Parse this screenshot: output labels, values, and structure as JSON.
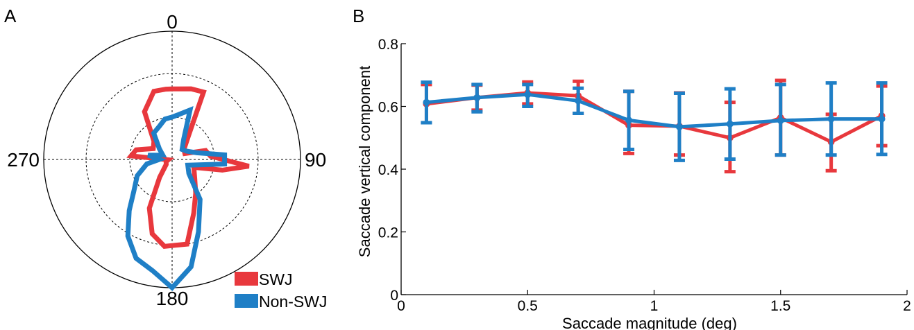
{
  "colors": {
    "swj": "#e8383d",
    "non_swj": "#1f7fc6",
    "axis": "#000000"
  },
  "chart_data": [
    {
      "panel_label": "A",
      "type": "polar",
      "angle_unit": "deg",
      "direction": "clockwise",
      "zero_location": "top",
      "angle_labels": [
        "0",
        "90",
        "180",
        "270"
      ],
      "r_max": 1.0,
      "rings": [
        0.33,
        0.67
      ],
      "legend_position": "bottom-right",
      "series": [
        {
          "name": "SWJ",
          "color_key": "swj",
          "points": [
            [
              0,
              0.55
            ],
            [
              15,
              0.57
            ],
            [
              25,
              0.58
            ],
            [
              35,
              0.22
            ],
            [
              50,
              0.12
            ],
            [
              65,
              0.11
            ],
            [
              75,
              0.27
            ],
            [
              85,
              0.3
            ],
            [
              95,
              0.6
            ],
            [
              102,
              0.4
            ],
            [
              110,
              0.18
            ],
            [
              130,
              0.23
            ],
            [
              145,
              0.32
            ],
            [
              158,
              0.45
            ],
            [
              170,
              0.67
            ],
            [
              185,
              0.68
            ],
            [
              195,
              0.6
            ],
            [
              205,
              0.42
            ],
            [
              215,
              0.17
            ],
            [
              230,
              0.06
            ],
            [
              250,
              0.05
            ],
            [
              265,
              0.03
            ],
            [
              275,
              0.32
            ],
            [
              285,
              0.29
            ],
            [
              300,
              0.17
            ],
            [
              315,
              0.2
            ],
            [
              330,
              0.43
            ],
            [
              345,
              0.55
            ],
            [
              355,
              0.55
            ]
          ]
        },
        {
          "name": "Non-SWJ",
          "color_key": "non_swj",
          "points": [
            [
              0,
              0.33
            ],
            [
              10,
              0.36
            ],
            [
              20,
              0.41
            ],
            [
              30,
              0.18
            ],
            [
              45,
              0.11
            ],
            [
              60,
              0.13
            ],
            [
              75,
              0.2
            ],
            [
              85,
              0.41
            ],
            [
              95,
              0.41
            ],
            [
              110,
              0.13
            ],
            [
              130,
              0.17
            ],
            [
              145,
              0.38
            ],
            [
              160,
              0.6
            ],
            [
              170,
              0.85
            ],
            [
              180,
              1.0
            ],
            [
              190,
              0.88
            ],
            [
              200,
              0.82
            ],
            [
              210,
              0.69
            ],
            [
              220,
              0.52
            ],
            [
              230,
              0.39
            ],
            [
              245,
              0.3
            ],
            [
              260,
              0.2
            ],
            [
              270,
              0.1
            ],
            [
              280,
              0.19
            ],
            [
              295,
              0.08
            ],
            [
              310,
              0.13
            ],
            [
              325,
              0.25
            ],
            [
              340,
              0.28
            ],
            [
              350,
              0.32
            ]
          ]
        }
      ]
    },
    {
      "panel_label": "B",
      "type": "line",
      "xlabel": "Saccade magnitude (deg)",
      "ylabel": "Saccade vertical component",
      "xlim": [
        0,
        2
      ],
      "ylim": [
        0,
        0.8
      ],
      "xticks": [
        0,
        0.5,
        1,
        1.5,
        2
      ],
      "xtick_labels": [
        "0",
        "0.5",
        "1",
        "1.5",
        "2"
      ],
      "yticks": [
        0,
        0.2,
        0.4,
        0.6,
        0.8
      ],
      "ytick_labels": [
        "0",
        "0.2",
        "0.4",
        "0.6",
        "0.8"
      ],
      "series": [
        {
          "name": "SWJ",
          "color_key": "swj",
          "x": [
            0.1,
            0.3,
            0.5,
            0.7,
            0.9,
            1.1,
            1.3,
            1.5,
            1.7,
            1.9
          ],
          "y": [
            0.608,
            0.628,
            0.643,
            0.634,
            0.54,
            0.537,
            0.5,
            0.564,
            0.487,
            0.57
          ],
          "err_low": [
            0.548,
            0.588,
            0.608,
            0.578,
            0.45,
            0.445,
            0.392,
            0.445,
            0.395,
            0.475
          ],
          "err_high": [
            0.67,
            0.668,
            0.678,
            0.68,
            0.648,
            0.643,
            0.613,
            0.683,
            0.575,
            0.665
          ]
        },
        {
          "name": "Non-SWJ",
          "color_key": "non_swj",
          "x": [
            0.1,
            0.3,
            0.5,
            0.7,
            0.9,
            1.1,
            1.3,
            1.5,
            1.7,
            1.9
          ],
          "y": [
            0.613,
            0.628,
            0.638,
            0.618,
            0.556,
            0.535,
            0.544,
            0.555,
            0.56,
            0.56
          ],
          "err_low": [
            0.548,
            0.583,
            0.6,
            0.578,
            0.463,
            0.428,
            0.432,
            0.445,
            0.445,
            0.447
          ],
          "err_high": [
            0.677,
            0.67,
            0.67,
            0.658,
            0.648,
            0.642,
            0.656,
            0.67,
            0.675,
            0.675
          ]
        }
      ]
    }
  ]
}
